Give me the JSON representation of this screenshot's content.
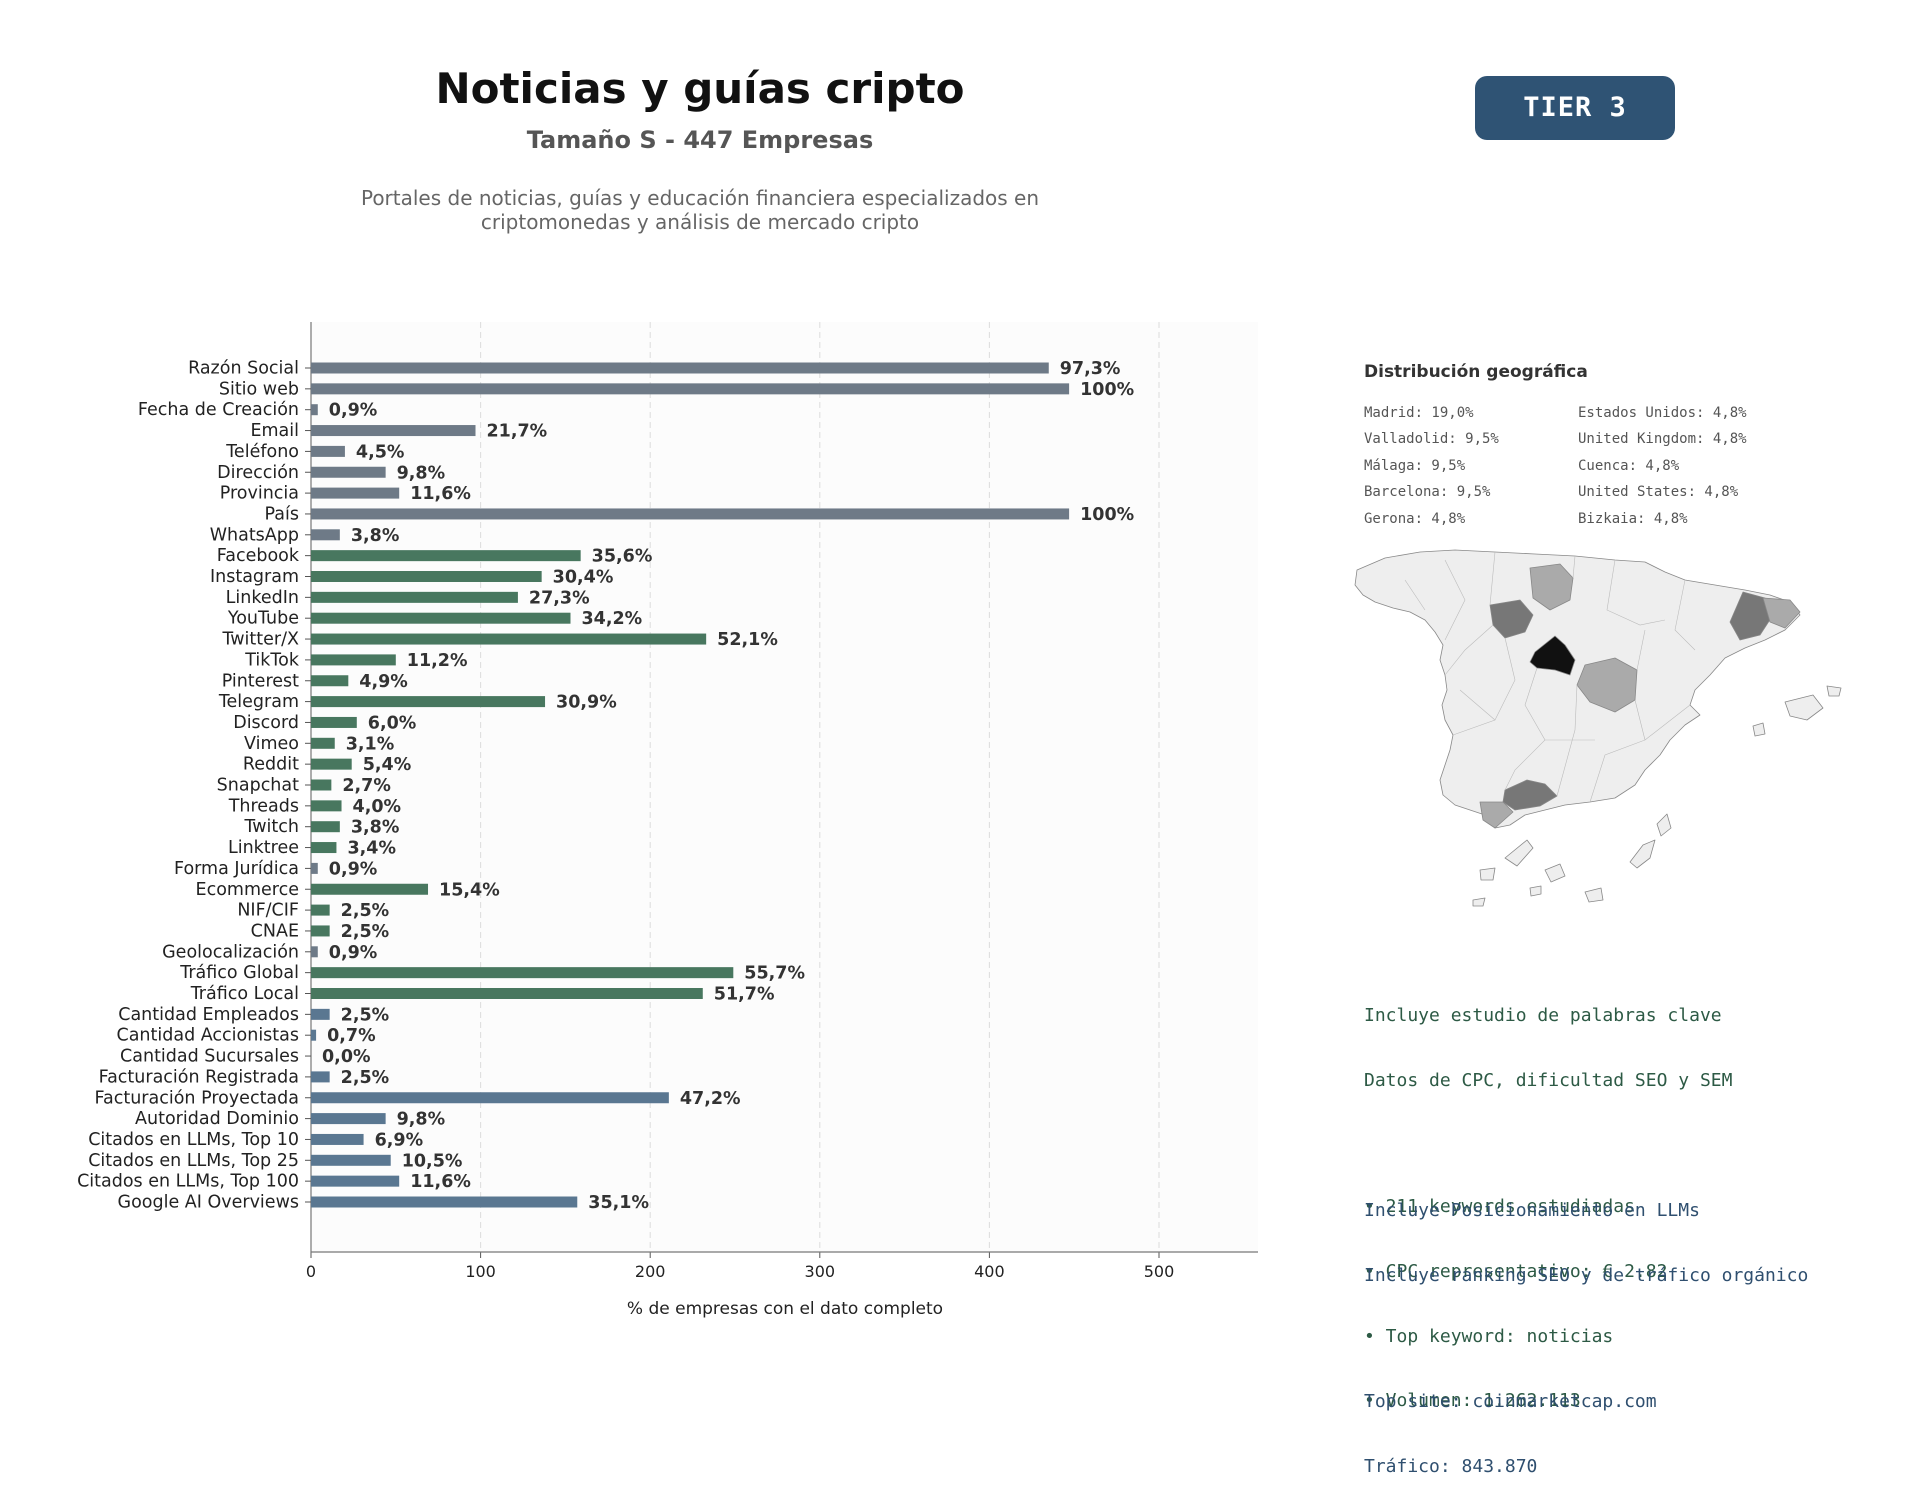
{
  "header": {
    "title": "Noticias y guías cripto",
    "subtitle": "Tamaño S - 447 Empresas",
    "description_lines": [
      "Portales de noticias, guías y educación financiera especializados en",
      "criptomonedas y análisis de mercado cripto"
    ],
    "tier_badge": "TIER 3"
  },
  "chart_data": {
    "type": "bar",
    "orientation": "horizontal",
    "xlabel": "% de empresas con el dato completo",
    "xlim": [
      0,
      560
    ],
    "xticks": [
      0,
      100,
      200,
      300,
      400,
      500
    ],
    "grid": "vertical dashed",
    "categories": [
      "Razón Social",
      "Sitio web",
      "Fecha de Creación",
      "Email",
      "Teléfono",
      "Dirección",
      "Provincia",
      "País",
      "WhatsApp",
      "Facebook",
      "Instagram",
      "LinkedIn",
      "YouTube",
      "Twitter/X",
      "TikTok",
      "Pinterest",
      "Telegram",
      "Discord",
      "Vimeo",
      "Reddit",
      "Snapchat",
      "Threads",
      "Twitch",
      "Linktree",
      "Forma Jurídica",
      "Ecommerce",
      "NIF/CIF",
      "CNAE",
      "Geolocalización",
      "Tráfico Global",
      "Tráfico Local",
      "Cantidad Empleados",
      "Cantidad Accionistas",
      "Cantidad Sucursales",
      "Facturación Registrada",
      "Facturación Proyectada",
      "Autoridad Dominio",
      "Citados en LLMs, Top 10",
      "Citados en LLMs, Top 25",
      "Citados en LLMs, Top 100",
      "Google AI Overviews"
    ],
    "values": [
      435,
      447,
      4,
      97,
      20,
      44,
      52,
      447,
      17,
      159,
      136,
      122,
      153,
      233,
      50,
      22,
      138,
      27,
      14,
      24,
      12,
      18,
      17,
      15,
      4,
      69,
      11,
      11,
      4,
      249,
      231,
      11,
      3,
      0,
      11,
      211,
      44,
      31,
      47,
      52,
      157
    ],
    "labels": [
      "97,3%",
      "100%",
      "0,9%",
      "21,7%",
      "4,5%",
      "9,8%",
      "11,6%",
      "100%",
      "3,8%",
      "35,6%",
      "30,4%",
      "27,3%",
      "34,2%",
      "52,1%",
      "11,2%",
      "4,9%",
      "30,9%",
      "6,0%",
      "3,1%",
      "5,4%",
      "2,7%",
      "4,0%",
      "3,8%",
      "3,4%",
      "0,9%",
      "15,4%",
      "2,5%",
      "2,5%",
      "0,9%",
      "55,7%",
      "51,7%",
      "2,5%",
      "0,7%",
      "0,0%",
      "2,5%",
      "47,2%",
      "9,8%",
      "6,9%",
      "10,5%",
      "11,6%",
      "35,1%"
    ],
    "groups": [
      "basic",
      "basic",
      "basic",
      "basic",
      "basic",
      "basic",
      "basic",
      "basic",
      "basic",
      "social",
      "social",
      "social",
      "social",
      "social",
      "social",
      "social",
      "social",
      "social",
      "social",
      "social",
      "social",
      "social",
      "social",
      "social",
      "basic",
      "social",
      "social",
      "social",
      "basic",
      "social",
      "social",
      "blue",
      "blue",
      "blue",
      "blue",
      "blue",
      "blue",
      "blue",
      "blue",
      "blue",
      "blue"
    ],
    "colors": {
      "basic": "#6e7a87",
      "social": "#48775f",
      "blue": "#5a7791"
    }
  },
  "geo": {
    "title": "Distribución geográfica",
    "col1": [
      "Madrid: 19,0%",
      "Valladolid: 9,5%",
      "Málaga: 9,5%",
      "Barcelona: 9,5%",
      "Gerona: 4,8%"
    ],
    "col2": [
      "Estados Unidos: 4,8%",
      "United Kingdom: 4,8%",
      "Cuenca: 4,8%",
      "United States: 4,8%",
      "Bizkaia: 4,8%"
    ],
    "map_shading": {
      "Madrid": "#111111",
      "Valladolid": "#777777",
      "Barcelona": "#777777",
      "Malaga": "#777777",
      "Girona": "#aaaaaa",
      "Cuenca": "#aaaaaa",
      "Bizkaia": "#aaaaaa",
      "other": "#eeeeee"
    }
  },
  "keywords": {
    "line1": "Incluye estudio de palabras clave",
    "line2": "Datos de CPC, dificultad SEO y SEM",
    "bullets": [
      "• 211 keywords estudiadas",
      "• CPC representativo: € 2.82",
      "• Top keyword: noticias",
      "• Volumen: 1.262.113"
    ]
  },
  "llm": {
    "line1": "Incluye Posicionamiento en LLMs",
    "line2": "Incluye ranking SEO y de tráfico orgánico",
    "top_site": "Top site: coinmarketcap.com",
    "traffic": "Tráfico: 843.870"
  }
}
